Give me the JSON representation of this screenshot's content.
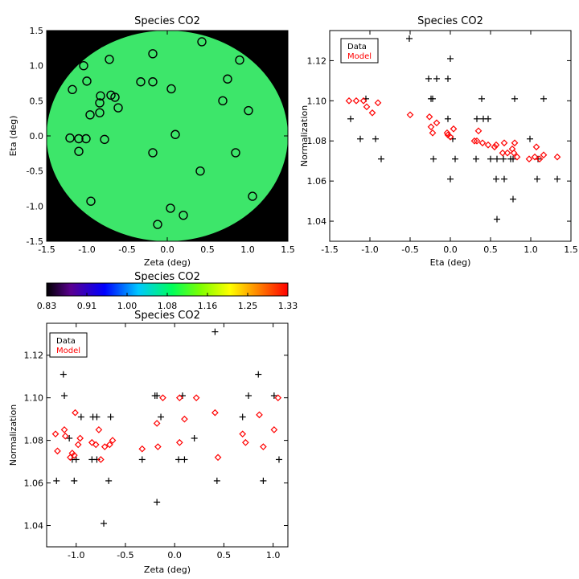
{
  "chart_data": [
    {
      "id": "map",
      "type": "heatmap",
      "title": "Species CO2",
      "xlabel": "Zeta (deg)",
      "ylabel": "Eta (deg)",
      "xlim": [
        -1.5,
        1.5
      ],
      "ylim": [
        -1.5,
        1.5
      ],
      "xticks": [
        "-1.5",
        "-1.0",
        "-0.5",
        "0.0",
        "0.5",
        "1.0",
        "1.5"
      ],
      "yticks": [
        "-1.5",
        "-1.0",
        "-0.5",
        "0.0",
        "0.5",
        "1.0",
        "1.5"
      ],
      "field_radius_deg": 1.5,
      "field_color": "#3de66a",
      "background_color": "#000000",
      "points": [
        {
          "x": 0.43,
          "y": 1.34
        },
        {
          "x": -0.18,
          "y": 1.17
        },
        {
          "x": -0.72,
          "y": 1.09
        },
        {
          "x": -1.04,
          "y": 1.0
        },
        {
          "x": 0.9,
          "y": 1.08
        },
        {
          "x": -0.33,
          "y": 0.77
        },
        {
          "x": -0.18,
          "y": 0.77
        },
        {
          "x": 0.75,
          "y": 0.81
        },
        {
          "x": -1.0,
          "y": 0.78
        },
        {
          "x": 0.05,
          "y": 0.67
        },
        {
          "x": -1.18,
          "y": 0.66
        },
        {
          "x": -0.7,
          "y": 0.58
        },
        {
          "x": -0.65,
          "y": 0.55
        },
        {
          "x": -0.83,
          "y": 0.57
        },
        {
          "x": 0.69,
          "y": 0.5
        },
        {
          "x": -0.84,
          "y": 0.47
        },
        {
          "x": -0.61,
          "y": 0.4
        },
        {
          "x": 1.01,
          "y": 0.36
        },
        {
          "x": -0.84,
          "y": 0.33
        },
        {
          "x": -0.96,
          "y": 0.3
        },
        {
          "x": 0.1,
          "y": 0.02
        },
        {
          "x": -1.21,
          "y": -0.03
        },
        {
          "x": -1.1,
          "y": -0.04
        },
        {
          "x": -1.01,
          "y": -0.04
        },
        {
          "x": -0.78,
          "y": -0.05
        },
        {
          "x": -1.1,
          "y": -0.22
        },
        {
          "x": -0.18,
          "y": -0.24
        },
        {
          "x": 0.85,
          "y": -0.24
        },
        {
          "x": 0.41,
          "y": -0.5
        },
        {
          "x": 1.06,
          "y": -0.86
        },
        {
          "x": -0.95,
          "y": -0.93
        },
        {
          "x": 0.04,
          "y": -1.03
        },
        {
          "x": 0.2,
          "y": -1.13
        },
        {
          "x": -0.12,
          "y": -1.26
        }
      ]
    },
    {
      "id": "colorbar",
      "type": "colorbar",
      "title": "Species CO2",
      "range": [
        0.83,
        1.33
      ],
      "tick_labels": [
        "0.83",
        "0.91",
        "1.00",
        "1.08",
        "1.16",
        "1.25",
        "1.33"
      ]
    },
    {
      "id": "eta_scatter",
      "type": "scatter",
      "title": "Species CO2",
      "xlabel": "Eta (deg)",
      "ylabel": "Normalization",
      "xlim": [
        -1.5,
        1.5
      ],
      "ylim": [
        1.03,
        1.135
      ],
      "xticks": [
        "-1.5",
        "-1.0",
        "-0.5",
        "0.0",
        "0.5",
        "1.0",
        "1.5"
      ],
      "yticks": [
        "1.04",
        "1.06",
        "1.08",
        "1.10",
        "1.12"
      ],
      "legend": [
        "Data",
        "Model"
      ],
      "legend_colors": [
        "#000000",
        "#ff0000"
      ],
      "series": [
        {
          "name": "Data",
          "marker": "plus",
          "color": "#000000",
          "points": [
            [
              -1.24,
              1.091
            ],
            [
              -1.12,
              1.081
            ],
            [
              -1.05,
              1.101
            ],
            [
              -0.93,
              1.081
            ],
            [
              -0.86,
              1.071
            ],
            [
              -0.51,
              1.131
            ],
            [
              -0.27,
              1.111
            ],
            [
              -0.24,
              1.101
            ],
            [
              -0.22,
              1.101
            ],
            [
              -0.17,
              1.111
            ],
            [
              -0.03,
              1.111
            ],
            [
              0.0,
              1.121
            ],
            [
              -0.03,
              1.091
            ],
            [
              0.03,
              1.081
            ],
            [
              0.06,
              1.071
            ],
            [
              0.0,
              1.061
            ],
            [
              -0.21,
              1.071
            ],
            [
              0.32,
              1.071
            ],
            [
              0.33,
              1.091
            ],
            [
              0.39,
              1.101
            ],
            [
              0.41,
              1.091
            ],
            [
              0.47,
              1.091
            ],
            [
              0.5,
              1.071
            ],
            [
              0.57,
              1.061
            ],
            [
              0.58,
              1.071
            ],
            [
              0.58,
              1.041
            ],
            [
              0.66,
              1.071
            ],
            [
              0.67,
              1.061
            ],
            [
              0.75,
              1.071
            ],
            [
              0.78,
              1.071
            ],
            [
              0.78,
              1.051
            ],
            [
              0.8,
              1.101
            ],
            [
              0.99,
              1.081
            ],
            [
              1.08,
              1.061
            ],
            [
              1.09,
              1.071
            ],
            [
              1.16,
              1.101
            ],
            [
              1.33,
              1.061
            ]
          ]
        },
        {
          "name": "Model",
          "marker": "diamond",
          "color": "#ff0000",
          "points": [
            [
              -1.26,
              1.1
            ],
            [
              -1.17,
              1.1
            ],
            [
              -1.08,
              1.1
            ],
            [
              -1.04,
              1.097
            ],
            [
              -0.97,
              1.094
            ],
            [
              -0.9,
              1.099
            ],
            [
              -0.5,
              1.093
            ],
            [
              -0.26,
              1.092
            ],
            [
              -0.24,
              1.087
            ],
            [
              -0.22,
              1.084
            ],
            [
              -0.17,
              1.089
            ],
            [
              -0.04,
              1.084
            ],
            [
              -0.03,
              1.083
            ],
            [
              0.0,
              1.082
            ],
            [
              0.04,
              1.086
            ],
            [
              0.3,
              1.08
            ],
            [
              0.33,
              1.08
            ],
            [
              0.35,
              1.085
            ],
            [
              0.4,
              1.079
            ],
            [
              0.47,
              1.078
            ],
            [
              0.55,
              1.077
            ],
            [
              0.57,
              1.078
            ],
            [
              0.65,
              1.074
            ],
            [
              0.67,
              1.079
            ],
            [
              0.71,
              1.074
            ],
            [
              0.77,
              1.076
            ],
            [
              0.79,
              1.074
            ],
            [
              0.8,
              1.079
            ],
            [
              0.83,
              1.072
            ],
            [
              0.98,
              1.071
            ],
            [
              1.05,
              1.072
            ],
            [
              1.07,
              1.077
            ],
            [
              1.11,
              1.071
            ],
            [
              1.16,
              1.073
            ],
            [
              1.33,
              1.072
            ]
          ]
        }
      ]
    },
    {
      "id": "zeta_scatter",
      "type": "scatter",
      "title": "Species CO2",
      "xlabel": "Zeta (deg)",
      "ylabel": "Normalization",
      "xlim": [
        -1.3,
        1.15
      ],
      "ylim": [
        1.03,
        1.135
      ],
      "xticks": [
        "-1.0",
        "-0.5",
        "0.0",
        "0.5",
        "1.0"
      ],
      "xtick_values": [
        -1.0,
        -0.5,
        0.0,
        0.5,
        1.0
      ],
      "yticks": [
        "1.04",
        "1.06",
        "1.08",
        "1.10",
        "1.12"
      ],
      "legend": [
        "Data",
        "Model"
      ],
      "legend_colors": [
        "#000000",
        "#ff0000"
      ],
      "series": [
        {
          "name": "Data",
          "marker": "plus",
          "color": "#000000",
          "points": [
            [
              -1.21,
              1.121
            ],
            [
              -1.2,
              1.061
            ],
            [
              -1.13,
              1.111
            ],
            [
              -1.12,
              1.101
            ],
            [
              -1.07,
              1.081
            ],
            [
              -1.04,
              1.071
            ],
            [
              -1.02,
              1.061
            ],
            [
              -1.0,
              1.071
            ],
            [
              -0.95,
              1.091
            ],
            [
              -0.83,
              1.091
            ],
            [
              -0.79,
              1.091
            ],
            [
              -0.84,
              1.071
            ],
            [
              -0.79,
              1.071
            ],
            [
              -0.72,
              1.041
            ],
            [
              -0.65,
              1.091
            ],
            [
              -0.67,
              1.061
            ],
            [
              -0.33,
              1.071
            ],
            [
              -0.18,
              1.101
            ],
            [
              -0.18,
              1.051
            ],
            [
              -0.14,
              1.091
            ],
            [
              -0.2,
              1.101
            ],
            [
              0.04,
              1.071
            ],
            [
              0.08,
              1.101
            ],
            [
              0.1,
              1.071
            ],
            [
              0.2,
              1.081
            ],
            [
              0.41,
              1.131
            ],
            [
              0.43,
              1.061
            ],
            [
              0.69,
              1.091
            ],
            [
              0.75,
              1.101
            ],
            [
              0.85,
              1.111
            ],
            [
              0.9,
              1.061
            ],
            [
              1.01,
              1.101
            ],
            [
              1.06,
              1.071
            ]
          ]
        },
        {
          "name": "Model",
          "marker": "diamond",
          "color": "#ff0000",
          "points": [
            [
              -1.21,
              1.083
            ],
            [
              -1.19,
              1.075
            ],
            [
              -1.12,
              1.085
            ],
            [
              -1.11,
              1.082
            ],
            [
              -1.06,
              1.072
            ],
            [
              -1.04,
              1.074
            ],
            [
              -1.02,
              1.073
            ],
            [
              -1.01,
              1.093
            ],
            [
              -0.98,
              1.078
            ],
            [
              -0.96,
              1.081
            ],
            [
              -0.84,
              1.079
            ],
            [
              -0.8,
              1.078
            ],
            [
              -0.77,
              1.085
            ],
            [
              -0.71,
              1.077
            ],
            [
              -0.75,
              1.071
            ],
            [
              -0.66,
              1.078
            ],
            [
              -0.63,
              1.08
            ],
            [
              -0.33,
              1.076
            ],
            [
              -0.17,
              1.077
            ],
            [
              -0.18,
              1.088
            ],
            [
              -0.12,
              1.1
            ],
            [
              0.05,
              1.1
            ],
            [
              0.05,
              1.079
            ],
            [
              0.1,
              1.09
            ],
            [
              0.22,
              1.1
            ],
            [
              0.41,
              1.093
            ],
            [
              0.44,
              1.072
            ],
            [
              0.69,
              1.083
            ],
            [
              0.72,
              1.079
            ],
            [
              0.86,
              1.092
            ],
            [
              0.9,
              1.077
            ],
            [
              1.01,
              1.085
            ],
            [
              1.05,
              1.1
            ]
          ]
        }
      ]
    }
  ]
}
